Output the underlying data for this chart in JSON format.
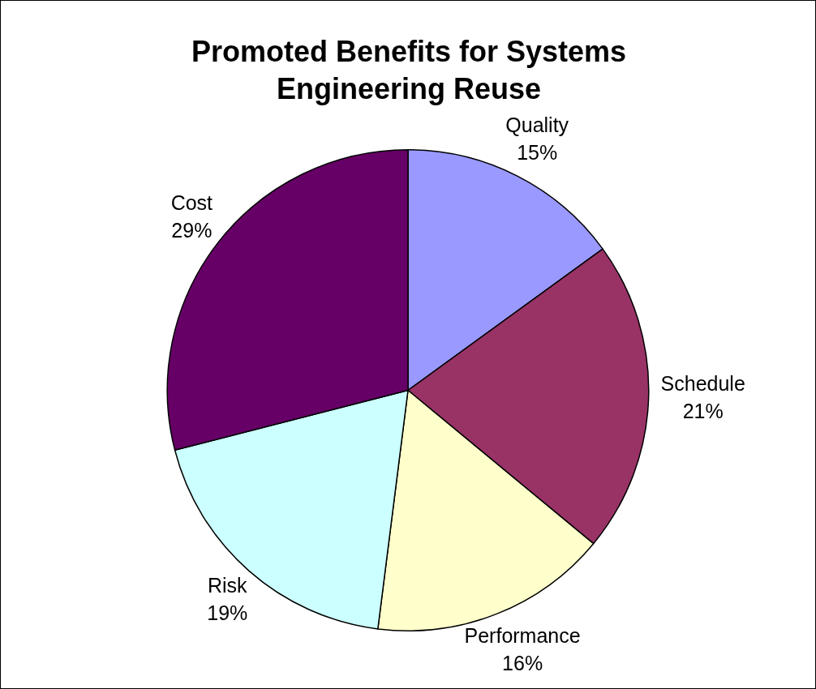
{
  "chart_data": {
    "type": "pie",
    "title": "Promoted Benefits for Systems Engineering Reuse",
    "categories": [
      "Quality",
      "Schedule",
      "Performance",
      "Risk",
      "Cost"
    ],
    "values": [
      15,
      21,
      16,
      19,
      29
    ],
    "value_labels": [
      "15%",
      "21%",
      "16%",
      "19%",
      "29%"
    ],
    "colors": [
      "#9999ff",
      "#993366",
      "#ffffcc",
      "#ccffff",
      "#660066"
    ],
    "legend": false
  }
}
